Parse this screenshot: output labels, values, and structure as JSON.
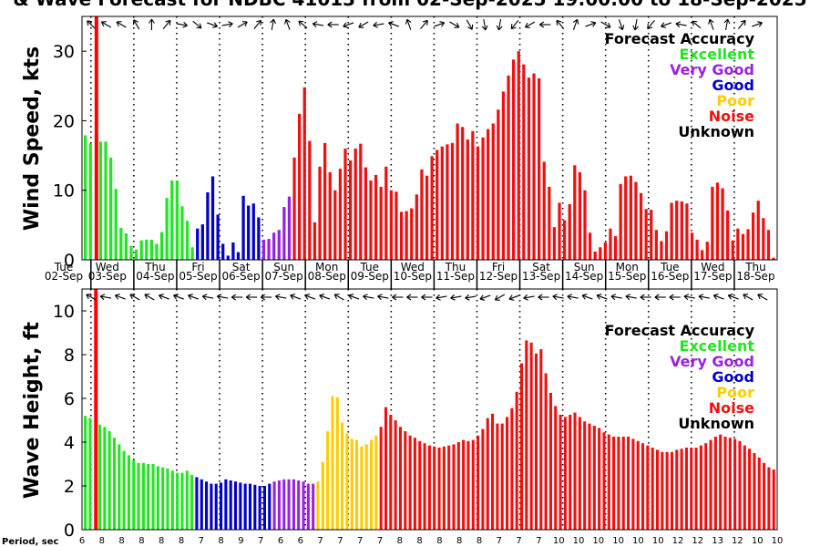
{
  "title": "& Wave Forecast for NDBC 41013 from 02-Sep-2025 19:00:00 to 18-Sep-2025",
  "colors": {
    "excellent": "#22e622",
    "very_good": "#9922dd",
    "good": "#0000cc",
    "poor": "#ffcc00",
    "noise": "#ee1111",
    "unknown": "#000000",
    "now_line": "#ff0000"
  },
  "legend": {
    "title": "Forecast Accuracy",
    "items": [
      {
        "label": "Excellent",
        "color": "#22e622"
      },
      {
        "label": "Very Good",
        "color": "#9922dd"
      },
      {
        "label": "Good",
        "color": "#0000cc"
      },
      {
        "label": "Poor",
        "color": "#ffcc00"
      },
      {
        "label": "Noise",
        "color": "#ee1111"
      },
      {
        "label": "Unknown",
        "color": "#000000"
      }
    ]
  },
  "days": [
    {
      "name": "Tue",
      "date": "02-Sep"
    },
    {
      "name": "Wed",
      "date": "03-Sep"
    },
    {
      "name": "Thu",
      "date": "04-Sep"
    },
    {
      "name": "Fri",
      "date": "05-Sep"
    },
    {
      "name": "Sat",
      "date": "06-Sep"
    },
    {
      "name": "Sun",
      "date": "07-Sep"
    },
    {
      "name": "Mon",
      "date": "08-Sep"
    },
    {
      "name": "Tue",
      "date": "09-Sep"
    },
    {
      "name": "Wed",
      "date": "10-Sep"
    },
    {
      "name": "Thu",
      "date": "11-Sep"
    },
    {
      "name": "Fri",
      "date": "12-Sep"
    },
    {
      "name": "Sat",
      "date": "13-Sep"
    },
    {
      "name": "Sun",
      "date": "14-Sep"
    },
    {
      "name": "Mon",
      "date": "15-Sep"
    },
    {
      "name": "Tue",
      "date": "16-Sep"
    },
    {
      "name": "Wed",
      "date": "17-Sep"
    },
    {
      "name": "Thu",
      "date": "18-Sep"
    }
  ],
  "period_label": "Period, sec",
  "periods": [
    "6",
    "8",
    "8",
    "8",
    "8",
    "8",
    "7",
    "8",
    "9",
    "7",
    "6",
    "6",
    "7",
    "7",
    "7",
    "7",
    "8",
    "8",
    "8",
    "8",
    "8",
    "7",
    "7",
    "7",
    "10",
    "10",
    "10",
    "10",
    "10",
    "10",
    "12",
    "12",
    "13",
    "12",
    "10",
    "10"
  ],
  "chart_data": [
    {
      "type": "bar",
      "ylabel": "Wind Speed, kts",
      "ylim": [
        0,
        35
      ],
      "yticks": [
        0,
        10,
        20,
        30
      ],
      "x_start": "02-Sep-2025 19:00",
      "x_end": "18-Sep-2025 24:00",
      "interval_hours": 3,
      "values": [
        17.9,
        16.7,
        0,
        17,
        17,
        14.7,
        10.2,
        4.6,
        3.8,
        2,
        1.5,
        2.8,
        2.9,
        2.9,
        2.3,
        4,
        8.9,
        11.4,
        11.4,
        7.7,
        5.6,
        1.8,
        4.5,
        5.1,
        9.7,
        12,
        6.5,
        2.3,
        0.6,
        2.5,
        1.1,
        9.2,
        7.8,
        8.1,
        6.1,
        2.9,
        3,
        3.9,
        4.3,
        7.6,
        9.1,
        14.7,
        21,
        24.8,
        17.1,
        5.4,
        13.4,
        16.8,
        12.6,
        10,
        13.1,
        16,
        14.3,
        16,
        16.7,
        13.3,
        11.4,
        12.2,
        10.5,
        13.4,
        10,
        9.8,
        6.9,
        7,
        7.4,
        9.4,
        13,
        12.1,
        14.9,
        15.8,
        16.3,
        16.6,
        16.8,
        19.6,
        19.1,
        17.3,
        18.5,
        16.3,
        17.6,
        18.8,
        19.6,
        21.6,
        24.2,
        26.5,
        28.8,
        30,
        28.1,
        26.2,
        26.8,
        26.1,
        14.1,
        10.5,
        4.7,
        8.2,
        5.7,
        8,
        13.6,
        12.6,
        10,
        3.9,
        1.2,
        1.8,
        2.5,
        4.5,
        3.4,
        10.9,
        12,
        12.1,
        11.2,
        9.6,
        7.3,
        7.2,
        4.3,
        2.7,
        4.1,
        8.2,
        8.5,
        8.4,
        8.1,
        3.9,
        2.9,
        1.4,
        2.6,
        10.5,
        11.1,
        10.3,
        7.1,
        2.8,
        4.5,
        3.7,
        4.4,
        6.8,
        8.5,
        6,
        4.3,
        0.3
      ],
      "categories": [
        "excellent",
        "excellent",
        "excellent",
        "excellent",
        "excellent",
        "excellent",
        "excellent",
        "excellent",
        "excellent",
        "excellent",
        "excellent",
        "excellent",
        "excellent",
        "excellent",
        "excellent",
        "excellent",
        "excellent",
        "excellent",
        "excellent",
        "excellent",
        "excellent",
        "excellent",
        "good",
        "good",
        "good",
        "good",
        "good",
        "good",
        "good",
        "good",
        "good",
        "good",
        "good",
        "good",
        "good",
        "very_good",
        "very_good",
        "very_good",
        "very_good",
        "very_good",
        "very_good",
        "noise",
        "noise",
        "noise",
        "noise",
        "noise",
        "noise",
        "noise",
        "noise",
        "noise",
        "noise",
        "noise",
        "noise",
        "noise",
        "noise",
        "noise",
        "noise",
        "noise",
        "noise",
        "noise",
        "noise",
        "noise",
        "noise",
        "noise",
        "noise",
        "noise",
        "noise",
        "noise",
        "noise",
        "noise",
        "noise",
        "noise",
        "noise",
        "noise",
        "noise",
        "noise",
        "noise",
        "noise",
        "noise",
        "noise",
        "noise",
        "noise",
        "noise",
        "noise",
        "noise",
        "noise",
        "noise",
        "noise",
        "noise",
        "noise",
        "noise",
        "noise",
        "noise",
        "noise",
        "noise",
        "noise",
        "noise",
        "noise",
        "noise",
        "noise",
        "noise",
        "noise",
        "noise",
        "noise",
        "noise",
        "noise",
        "noise",
        "noise",
        "noise",
        "noise",
        "noise",
        "noise",
        "noise",
        "noise",
        "noise",
        "noise",
        "noise",
        "noise",
        "noise",
        "noise",
        "noise",
        "noise",
        "noise",
        "noise",
        "noise",
        "noise",
        "noise",
        "noise",
        "noise",
        "noise",
        "noise",
        "noise",
        "noise",
        "noise",
        "noise",
        "noise"
      ],
      "directions": [
        135,
        130,
        125,
        120,
        115,
        110,
        120,
        130,
        140,
        150,
        160,
        170,
        180,
        180,
        200,
        220,
        240,
        260,
        280,
        290,
        300,
        310,
        310,
        300,
        290,
        280,
        270,
        260,
        250,
        250,
        240,
        230,
        220,
        220,
        210,
        200,
        190,
        180,
        170,
        160,
        150,
        140,
        130,
        120,
        110,
        100,
        100,
        90,
        90,
        80,
        80,
        70,
        60,
        60,
        60,
        70,
        80,
        80,
        90,
        100,
        110,
        120,
        140,
        160,
        180,
        200,
        220,
        230,
        240,
        250,
        260,
        280,
        300,
        310,
        320,
        330,
        330,
        340,
        350,
        350,
        0,
        10,
        20,
        30,
        40,
        40,
        50,
        60,
        70,
        80,
        90,
        100,
        120,
        140,
        160,
        180,
        200,
        220,
        240,
        250,
        260,
        280,
        300,
        320,
        330,
        340,
        350,
        0,
        10,
        20,
        30,
        40,
        50,
        60,
        70,
        80,
        90,
        100,
        110,
        120,
        130,
        140,
        150,
        160,
        170,
        180,
        190,
        200,
        210,
        220,
        230,
        240,
        250,
        260,
        270,
        280
      ]
    },
    {
      "type": "bar",
      "ylabel": "Wave Height, ft",
      "ylim": [
        0,
        11
      ],
      "yticks": [
        0,
        2,
        4,
        6,
        8,
        10
      ],
      "x_start": "02-Sep-2025 19:00",
      "x_end": "18-Sep-2025 24:00",
      "interval_hours": 3,
      "values": [
        5.2,
        5.1,
        0,
        4.8,
        4.7,
        4.5,
        4.2,
        3.9,
        3.6,
        3.4,
        3.2,
        3.05,
        3.05,
        3.0,
        3.0,
        2.9,
        2.85,
        2.8,
        2.7,
        2.6,
        2.6,
        2.7,
        2.5,
        2.4,
        2.3,
        2.2,
        2.1,
        2.1,
        2.15,
        2.3,
        2.25,
        2.2,
        2.15,
        2.1,
        2.1,
        2.05,
        2.0,
        2.0,
        2.1,
        2.2,
        2.25,
        2.3,
        2.3,
        2.3,
        2.25,
        2.2,
        2.1,
        2.1,
        2.2,
        3.1,
        4.5,
        6.1,
        6.05,
        4.9,
        4.4,
        4.15,
        4.1,
        3.8,
        3.9,
        4.1,
        4.3,
        4.7,
        5.6,
        5.25,
        5.0,
        4.7,
        4.5,
        4.3,
        4.2,
        4.05,
        3.95,
        3.85,
        3.8,
        3.75,
        3.8,
        3.85,
        3.9,
        4.0,
        4.1,
        4.05,
        4.1,
        4.3,
        4.6,
        5.1,
        5.3,
        4.85,
        4.85,
        5.15,
        5.55,
        6.3,
        7.6,
        8.65,
        8.55,
        8.05,
        8.25,
        7.15,
        6.25,
        5.65,
        5.25,
        5.15,
        5.25,
        5.35,
        5.15,
        4.95,
        4.85,
        4.75,
        4.65,
        4.45,
        4.35,
        4.25,
        4.25,
        4.25,
        4.25,
        4.15,
        4.05,
        3.95,
        3.85,
        3.75,
        3.65,
        3.55,
        3.55,
        3.55,
        3.65,
        3.7,
        3.75,
        3.75,
        3.75,
        3.85,
        3.95,
        4.1,
        4.25,
        4.35,
        4.25,
        4.2,
        4.15,
        4.05,
        3.85,
        3.7,
        3.5,
        3.3,
        3.05,
        2.85,
        2.75
      ],
      "categories": [
        "excellent",
        "excellent",
        "excellent",
        "excellent",
        "excellent",
        "excellent",
        "excellent",
        "excellent",
        "excellent",
        "excellent",
        "excellent",
        "excellent",
        "excellent",
        "excellent",
        "excellent",
        "excellent",
        "excellent",
        "excellent",
        "excellent",
        "excellent",
        "excellent",
        "excellent",
        "excellent",
        "good",
        "good",
        "good",
        "good",
        "good",
        "good",
        "good",
        "good",
        "good",
        "good",
        "good",
        "good",
        "good",
        "good",
        "good",
        "good",
        "very_good",
        "very_good",
        "very_good",
        "very_good",
        "very_good",
        "very_good",
        "very_good",
        "very_good",
        "very_good",
        "poor",
        "poor",
        "poor",
        "poor",
        "poor",
        "poor",
        "poor",
        "poor",
        "poor",
        "poor",
        "poor",
        "poor",
        "poor",
        "noise",
        "noise",
        "noise",
        "noise",
        "noise",
        "noise",
        "noise",
        "noise",
        "noise",
        "noise",
        "noise",
        "noise",
        "noise",
        "noise",
        "noise",
        "noise",
        "noise",
        "noise",
        "noise",
        "noise",
        "noise",
        "noise",
        "noise",
        "noise",
        "noise",
        "noise",
        "noise",
        "noise",
        "noise",
        "noise",
        "noise",
        "noise",
        "noise",
        "noise",
        "noise",
        "noise",
        "noise",
        "noise",
        "noise",
        "noise",
        "noise",
        "noise",
        "noise",
        "noise",
        "noise",
        "noise",
        "noise",
        "noise",
        "noise",
        "noise",
        "noise",
        "noise",
        "noise",
        "noise",
        "noise",
        "noise",
        "noise",
        "noise",
        "noise",
        "noise",
        "noise",
        "noise",
        "noise",
        "noise",
        "noise",
        "noise",
        "noise",
        "noise",
        "noise",
        "noise",
        "noise",
        "noise",
        "noise",
        "noise",
        "noise",
        "noise",
        "noise",
        "noise",
        "noise",
        "noise",
        "noise",
        "noise"
      ],
      "directions": [
        120,
        110,
        100,
        100,
        100,
        110,
        110,
        110,
        110,
        120,
        120,
        120,
        120,
        120,
        120,
        110,
        110,
        110,
        110,
        110,
        110,
        110,
        110,
        100,
        100,
        100,
        100,
        100,
        100,
        90,
        90,
        90,
        90,
        90,
        90,
        90,
        90,
        100,
        100,
        100,
        100,
        100,
        110,
        110,
        110,
        110,
        110,
        110,
        110,
        120,
        120,
        120,
        120,
        120,
        110,
        110,
        110,
        100,
        100,
        100,
        100,
        100,
        100,
        90,
        90,
        90,
        90,
        90,
        90,
        90,
        90,
        80,
        80,
        80,
        80,
        80,
        80,
        80,
        80,
        70,
        70,
        70,
        60,
        60,
        60,
        60,
        70,
        70,
        80,
        80,
        80,
        80,
        90,
        90,
        90,
        100,
        100,
        100,
        100,
        100,
        110,
        110,
        110,
        110,
        110,
        110,
        110,
        100,
        100,
        100,
        100,
        100,
        100,
        100,
        90,
        90,
        90,
        90,
        90,
        90,
        90,
        100,
        100,
        100,
        100,
        100,
        100,
        100,
        110,
        110,
        110,
        110,
        110,
        110,
        120,
        120,
        120,
        120,
        120,
        120,
        120
      ]
    }
  ]
}
